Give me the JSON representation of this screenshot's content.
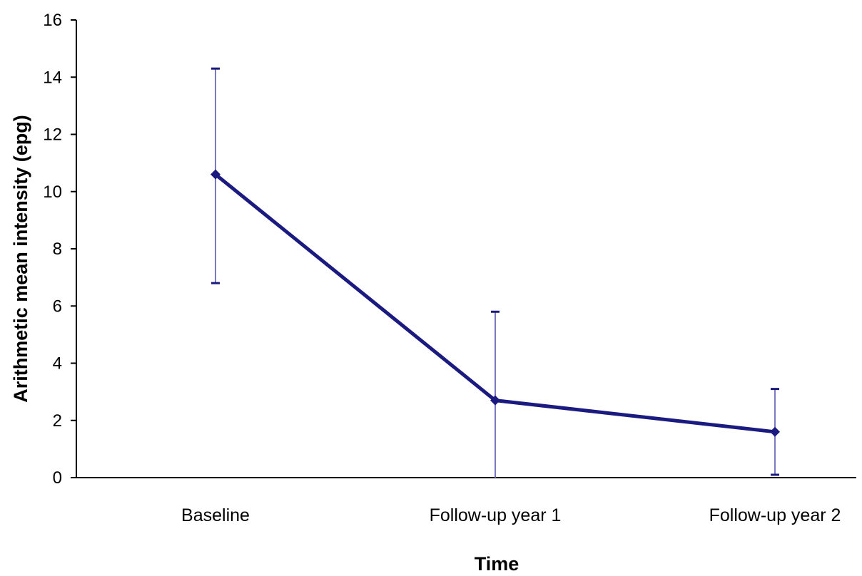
{
  "chart_data": {
    "type": "line",
    "title": "",
    "xlabel": "Time",
    "ylabel": "Arithmetic mean intensity (epg)",
    "categories": [
      "Baseline",
      "Follow-up year 1",
      "Follow-up year 2"
    ],
    "series": [
      {
        "values": [
          10.6,
          2.7,
          1.6
        ],
        "error_upper": [
          14.3,
          5.8,
          3.1
        ],
        "error_lower": [
          6.8,
          0,
          0.1
        ]
      }
    ],
    "ylim": [
      0,
      16
    ],
    "yticks": [
      0,
      2,
      4,
      6,
      8,
      10,
      12,
      14,
      16
    ],
    "grid": false,
    "legend": "none",
    "colors": {
      "line": "#1a1a80",
      "error_bar": "#1a1a80",
      "error_bar_light": "#7a7ac0",
      "axis": "#000000"
    }
  }
}
